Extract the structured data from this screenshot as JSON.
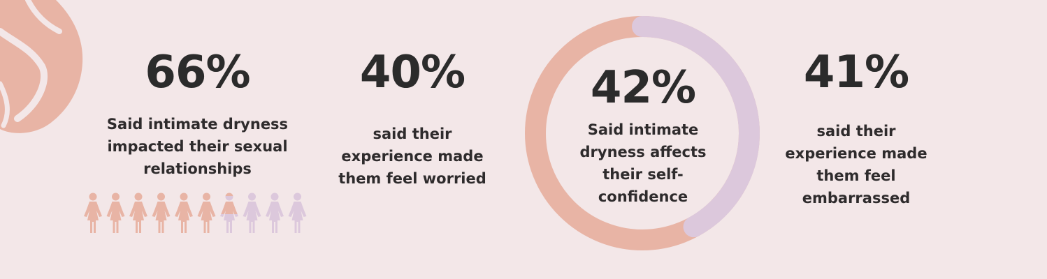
{
  "colors": {
    "background": "#f3e7e8",
    "peach": "#e8b4a5",
    "lavender": "#dcc8dc",
    "text": "#2b2b2b"
  },
  "stats": [
    {
      "value": "66%",
      "text": "Said intimate dryness impacted their sexual relationships"
    },
    {
      "value": "40%",
      "text": "said their experience made them feel worried"
    },
    {
      "value": "42%",
      "text": "Said intimate dryness affects their self-confidence"
    },
    {
      "value": "41%",
      "text": "said their experience made them feel embarrassed"
    }
  ],
  "pictogram": {
    "total": 10,
    "highlighted_fraction": 0.66,
    "highlight_color": "#e8b4a5",
    "base_color": "#dcc8dc"
  },
  "ring_chart": {
    "fraction": 0.42,
    "fraction_color": "#dcc8dc",
    "remainder_color": "#e8b4a5"
  },
  "decor": {
    "icon": "floral-blob-decoration"
  }
}
